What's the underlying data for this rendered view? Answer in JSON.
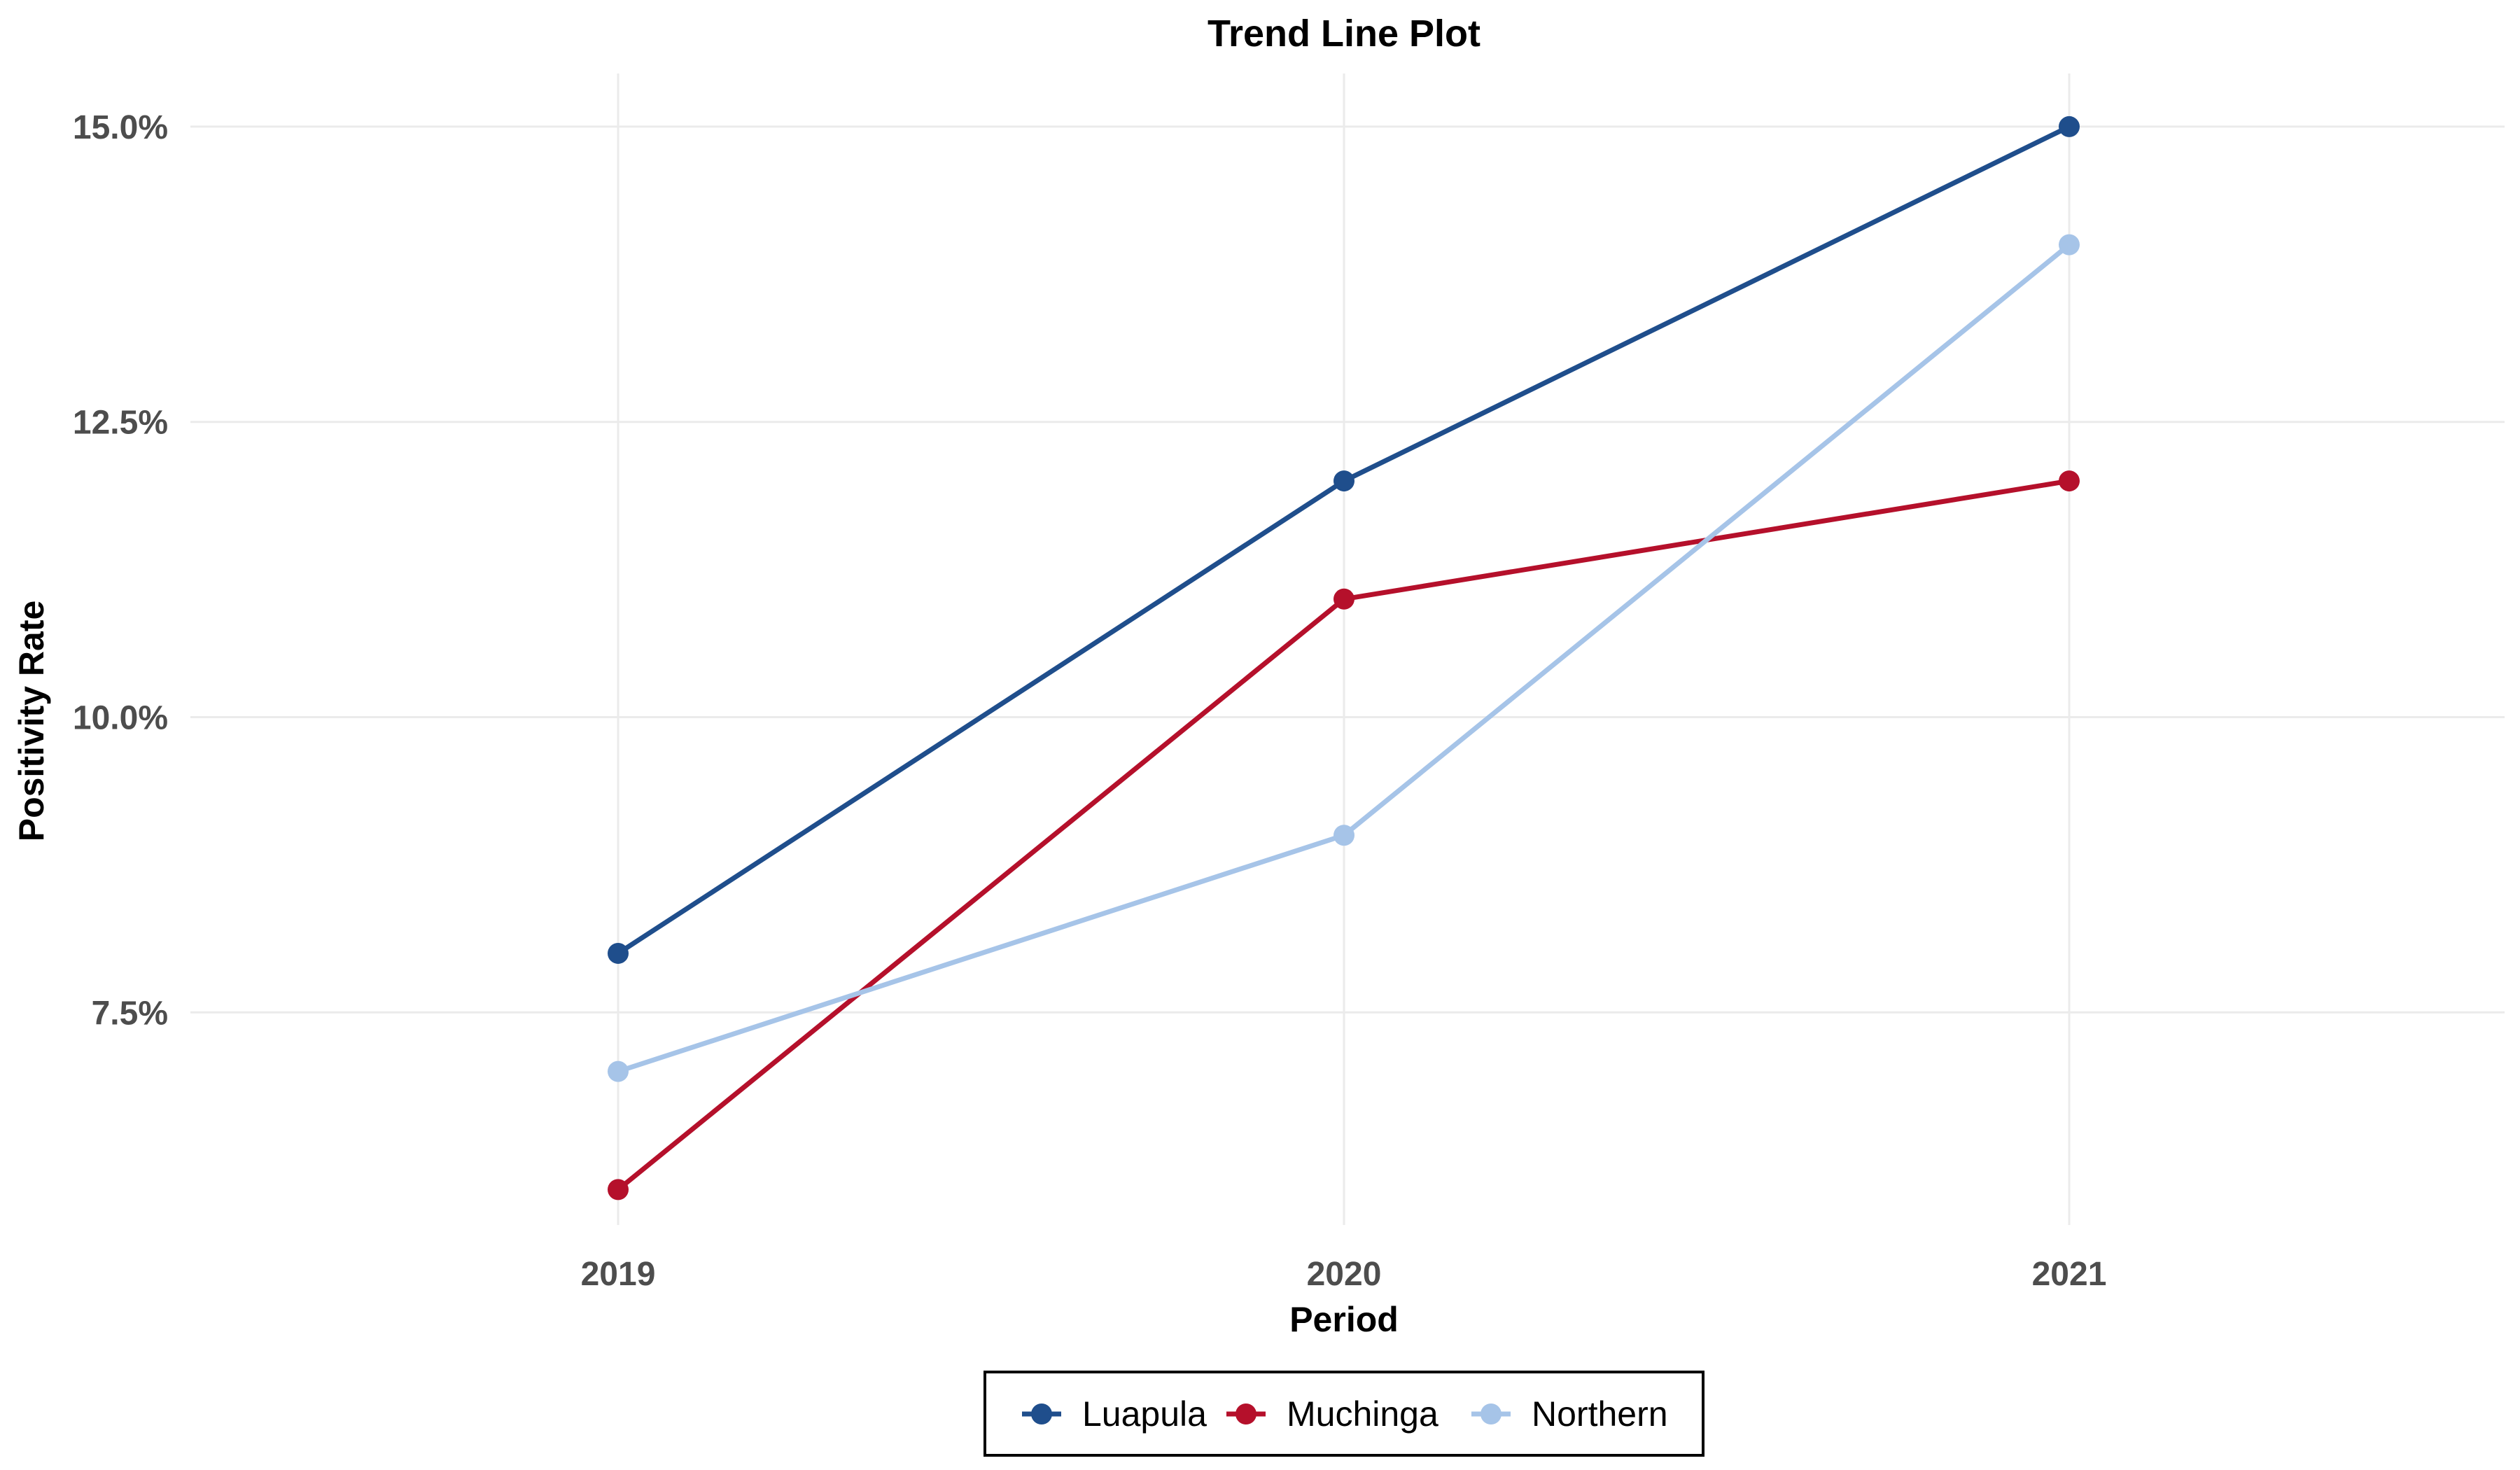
{
  "chart_data": {
    "type": "line",
    "title": "Trend Line Plot",
    "xlabel": "Period",
    "ylabel": "Positivity Rate",
    "x": [
      "2019",
      "2020",
      "2021"
    ],
    "ylim": [
      5.7,
      15.45
    ],
    "yticks": [
      7.5,
      10.0,
      12.5,
      15.0
    ],
    "ytick_labels": [
      "7.5%",
      "10.0%",
      "12.5%",
      "15.0%"
    ],
    "grid": true,
    "legend_position": "bottom",
    "series": [
      {
        "name": "Luapula",
        "color": "#1f4e8c",
        "values": [
          8,
          12,
          15
        ]
      },
      {
        "name": "Muchinga",
        "color": "#b5102b",
        "values": [
          6,
          11,
          12
        ]
      },
      {
        "name": "Northern",
        "color": "#a6c4e8",
        "values": [
          7,
          9,
          14
        ]
      }
    ]
  }
}
